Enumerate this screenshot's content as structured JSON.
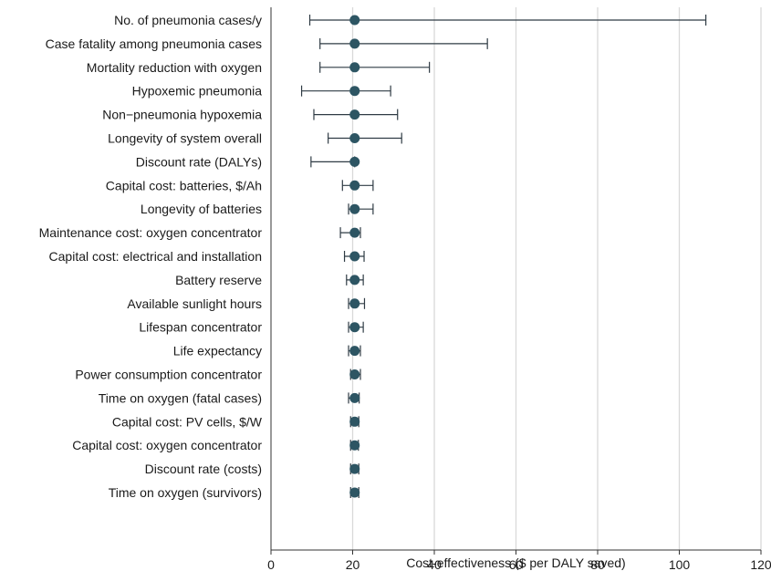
{
  "chart_data": {
    "type": "scatter",
    "orientation": "horizontal",
    "xlabel": "Cost-effectiveness ($ per DALY saved)",
    "xlim": [
      0,
      120
    ],
    "x_ticks": [
      0,
      20,
      40,
      60,
      80,
      100,
      120
    ],
    "grid": "vertical",
    "colors": {
      "point": "#2d5563",
      "errorbar": "#2f3b44",
      "grid": "#d9d9d9",
      "axis": "#333333"
    },
    "base_value": 20.5,
    "categories": [
      "No. of pneumonia cases/y",
      "Case fatality among pneumonia cases",
      "Mortality reduction with oxygen",
      "Hypoxemic pneumonia",
      "Non−pneumonia hypoxemia",
      "Longevity of system overall",
      "Discount rate (DALYs)",
      "Capital cost: batteries, $/Ah",
      "Longevity of batteries",
      "Maintenance cost: oxygen concentrator",
      "Capital cost: electrical and installation",
      "Battery reserve",
      "Available sunlight hours",
      "Lifespan concentrator",
      "Life expectancy",
      "Power consumption concentrator",
      "Time on oxygen (fatal cases)",
      "Capital cost: PV cells, $/W",
      "Capital cost: oxygen concentrator",
      "Discount rate (costs)",
      "Time on oxygen (survivors)"
    ],
    "values": [
      20.5,
      20.5,
      20.5,
      20.5,
      20.5,
      20.5,
      20.5,
      20.5,
      20.5,
      20.5,
      20.5,
      20.5,
      20.5,
      20.5,
      20.5,
      20.5,
      20.5,
      20.5,
      20.5,
      20.5,
      20.5
    ],
    "low": [
      9.5,
      12.0,
      12.0,
      7.5,
      10.5,
      14.0,
      9.8,
      17.5,
      19.0,
      17.0,
      18.0,
      18.5,
      19.0,
      19.0,
      19.0,
      19.5,
      19.0,
      19.5,
      19.5,
      19.5,
      19.5
    ],
    "high": [
      106.5,
      53.0,
      38.8,
      29.3,
      31.0,
      32.0,
      20.5,
      25.0,
      25.0,
      21.9,
      22.8,
      22.6,
      22.9,
      22.6,
      21.9,
      21.9,
      21.6,
      21.5,
      21.4,
      21.5,
      21.5
    ]
  }
}
